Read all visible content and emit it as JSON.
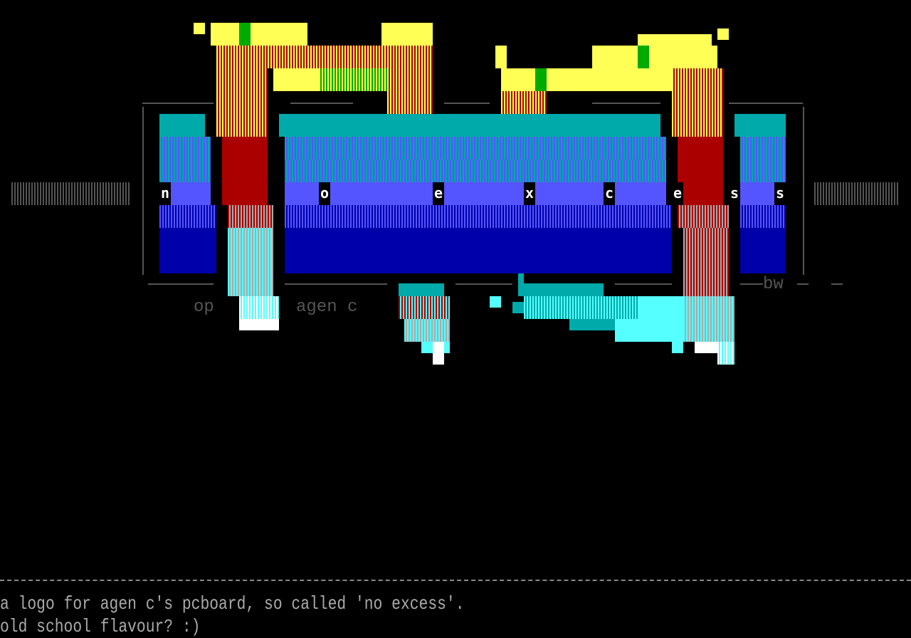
{
  "logo": {
    "letters": [
      "n",
      "o",
      "e",
      "x",
      "c",
      "e",
      "s",
      "s"
    ],
    "subtitle_left": "op",
    "subtitle_right": "agen c",
    "signature": "bw"
  },
  "palette": {
    "yellow": "#ffff55",
    "red": "#aa0000",
    "green": "#00aa00",
    "teal": "#00aaaa",
    "cyan": "#55ffff",
    "blue": "#5555ff",
    "dark_blue": "#0000aa",
    "gray": "#555555",
    "white": "#ffffff"
  },
  "description": {
    "line1": "a logo for agen c's pcboard, so called 'no excess'.",
    "line2": "old school flavour? :)"
  }
}
